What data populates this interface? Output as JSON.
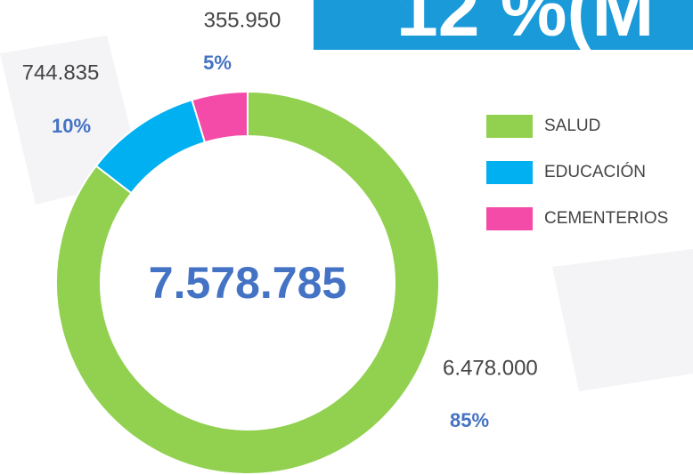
{
  "banner": "12 %(M",
  "chart_data": {
    "type": "donut",
    "categories": [
      "SALUD",
      "EDUCACIÓN",
      "CEMENTERIOS"
    ],
    "values": [
      6478000,
      744835,
      355950
    ],
    "value_labels": [
      "6.478.000",
      "744.835",
      "355.950"
    ],
    "percent_labels": [
      "85%",
      "10%",
      "5%"
    ],
    "colors": [
      "#92d050",
      "#00b0f0",
      "#f54ba8"
    ],
    "center_label": "7.578.785"
  }
}
